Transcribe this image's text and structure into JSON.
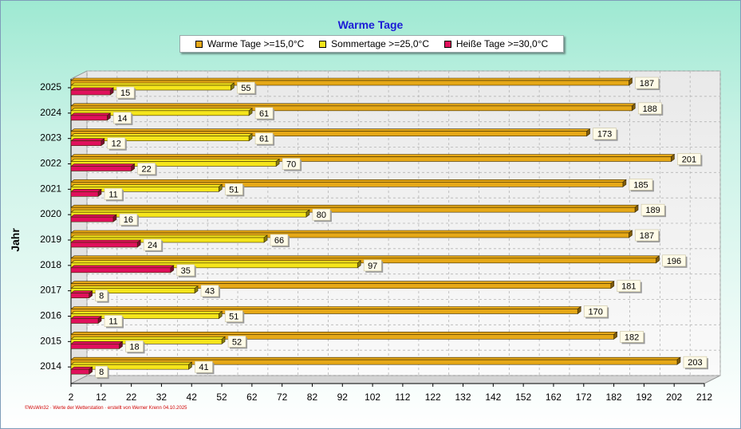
{
  "chart_data": {
    "type": "bar",
    "orientation": "horizontal",
    "title": "Warme Tage",
    "ylabel": "Jahr",
    "xlabel": "",
    "categories": [
      "2025",
      "2024",
      "2023",
      "2022",
      "2021",
      "2020",
      "2019",
      "2018",
      "2017",
      "2016",
      "2015",
      "2014"
    ],
    "series": [
      {
        "name": "Warme Tage >=15,0°C",
        "color": "#e6a817",
        "values": [
          187,
          188,
          173,
          201,
          185,
          189,
          187,
          196,
          181,
          170,
          182,
          203
        ]
      },
      {
        "name": "Sommertage >=25,0°C",
        "color": "#f5e51b",
        "values": [
          55,
          61,
          61,
          70,
          51,
          80,
          66,
          97,
          43,
          51,
          52,
          41
        ]
      },
      {
        "name": "Heiße Tage >=30,0°C",
        "color": "#e0105c",
        "values": [
          15,
          14,
          12,
          22,
          11,
          16,
          24,
          35,
          8,
          11,
          18,
          8
        ]
      }
    ],
    "xlim": [
      2,
      212
    ],
    "xticks": [
      2,
      12,
      22,
      32,
      42,
      52,
      62,
      72,
      82,
      92,
      102,
      112,
      122,
      132,
      142,
      152,
      162,
      172,
      182,
      192,
      202,
      212
    ],
    "grid": true,
    "legend_position": "top"
  },
  "credit": "©WsWin32 · Werte der Wetterstation · erstellt von Werner Krenn 04.10.2025"
}
